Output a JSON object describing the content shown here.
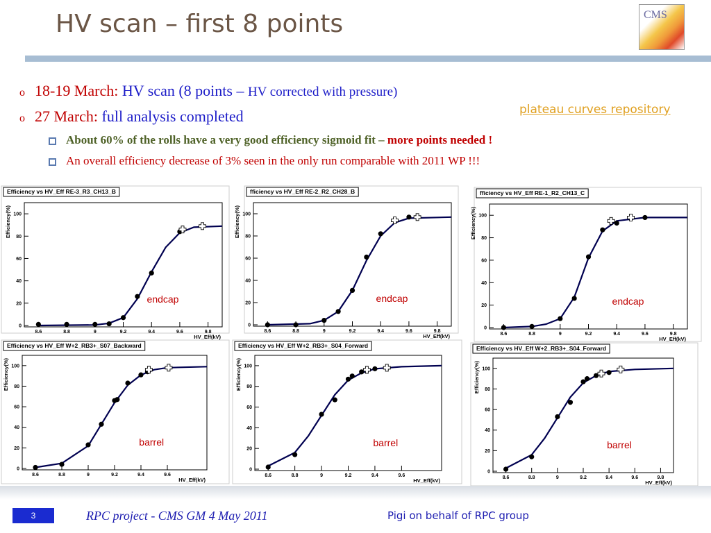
{
  "title": "HV scan – first 8 points",
  "logo": "CMS",
  "link": "plateau curves repository",
  "bullets": [
    {
      "label": "18-19 March:",
      "text": "HV scan (8 points –",
      "note": "HV corrected with pressure)"
    },
    {
      "label": "27 March:",
      "text": "full analysis completed"
    }
  ],
  "subbullets": [
    {
      "text": "About 60% of the rolls have a very good efficiency sigmoid fit –",
      "emphasis": "more points needed !"
    },
    {
      "text": "An overall efficiency decrease of 3% seen in the only run comparable with 2011 WP !!!"
    }
  ],
  "footer": {
    "page": "3",
    "left": "RPC project - CMS GM 4 May 2011",
    "right": "Pigi on behalf of RPC group"
  },
  "chart_data": [
    {
      "type": "scatter",
      "title": "Efficiency vs HV_Eff RE-3_R3_CH13_B",
      "xlabel": "HV_Eff(kV)",
      "ylabel": "Efficiency(%)",
      "annotation": "endcap",
      "xlim": [
        8.5,
        9.9
      ],
      "ylim": [
        0,
        110
      ],
      "xticks": [
        8.6,
        8.8,
        9,
        9.2,
        9.4,
        9.6,
        9.8
      ],
      "yticks": [
        0,
        20,
        40,
        60,
        80,
        100
      ],
      "series": [
        {
          "marker": "circle",
          "color": "#000000",
          "x": [
            8.6,
            8.8,
            9.0,
            9.1,
            9.2,
            9.3,
            9.4,
            9.6
          ],
          "y": [
            1,
            1,
            1,
            1.5,
            7,
            26,
            47,
            84
          ]
        },
        {
          "marker": "cross",
          "color": "#000000",
          "x": [
            9.62,
            9.76
          ],
          "y": [
            86,
            89
          ]
        },
        {
          "marker": "line",
          "color": "#000050",
          "x": [
            8.6,
            9.0,
            9.1,
            9.2,
            9.3,
            9.4,
            9.5,
            9.6,
            9.7,
            9.9
          ],
          "y": [
            0,
            0.5,
            2,
            7,
            24,
            48,
            70,
            83,
            88,
            89
          ]
        }
      ]
    },
    {
      "type": "scatter",
      "title": "fficiency vs HV_Eff RE-2_R2_CH28_B",
      "xlabel": "HV_Eff(kV)",
      "ylabel": "Efficiency(%)",
      "annotation": "endcap",
      "xlim": [
        8.5,
        9.9
      ],
      "ylim": [
        0,
        110
      ],
      "xticks": [
        8.6,
        8.8,
        9,
        9.2,
        9.4,
        9.6,
        9.8
      ],
      "yticks": [
        0,
        20,
        40,
        60,
        80,
        100
      ],
      "series": [
        {
          "marker": "circle",
          "color": "#000000",
          "x": [
            8.6,
            8.8,
            9.0,
            9.1,
            9.2,
            9.3,
            9.4,
            9.6
          ],
          "y": [
            0,
            0,
            4,
            12,
            31,
            61,
            82,
            97
          ]
        },
        {
          "marker": "cross",
          "color": "#000000",
          "x": [
            9.5,
            9.66
          ],
          "y": [
            94,
            97
          ]
        },
        {
          "marker": "line",
          "color": "#000050",
          "x": [
            8.6,
            8.9,
            9.0,
            9.1,
            9.2,
            9.3,
            9.4,
            9.5,
            9.6,
            9.9
          ],
          "y": [
            0,
            1,
            4,
            12,
            31,
            58,
            80,
            92,
            96,
            97
          ]
        }
      ]
    },
    {
      "type": "scatter",
      "title": "fficiency vs HV_Eff RE-1_R2_CH13_C",
      "xlabel": "HV_Eff(kV)",
      "ylabel": "Efficiency(%)",
      "annotation": "endcap",
      "xlim": [
        8.5,
        9.9
      ],
      "ylim": [
        0,
        110
      ],
      "xticks": [
        8.6,
        8.8,
        9,
        9.2,
        9.4,
        9.6,
        9.8
      ],
      "yticks": [
        0,
        20,
        40,
        60,
        80,
        100
      ],
      "series": [
        {
          "marker": "circle",
          "color": "#000000",
          "x": [
            8.6,
            8.8,
            9.0,
            9.1,
            9.2,
            9.3,
            9.4,
            9.6
          ],
          "y": [
            0,
            1,
            8,
            26,
            63,
            87,
            93,
            98
          ]
        },
        {
          "marker": "cross",
          "color": "#000000",
          "x": [
            9.36,
            9.5
          ],
          "y": [
            95,
            98
          ]
        },
        {
          "marker": "line",
          "color": "#000050",
          "x": [
            8.6,
            8.8,
            8.9,
            9.0,
            9.1,
            9.2,
            9.3,
            9.4,
            9.6,
            9.9
          ],
          "y": [
            0,
            1,
            3,
            8,
            27,
            62,
            86,
            95,
            98,
            98
          ]
        }
      ]
    },
    {
      "type": "scatter",
      "title": "Efficiency vs HV_Eff W+2_RB3+_S07_Backward",
      "xlabel": "HV_Eff(kV)",
      "ylabel": "Efficiency(%)",
      "annotation": "barrel",
      "xlim": [
        8.5,
        9.9
      ],
      "ylim": [
        0,
        110
      ],
      "xticks": [
        8.6,
        8.8,
        9,
        9.2,
        9.4,
        9.6
      ],
      "yticks": [
        0,
        20,
        40,
        60,
        80,
        100
      ],
      "series": [
        {
          "marker": "circle",
          "color": "#000000",
          "x": [
            8.6,
            8.8,
            9.0,
            9.1,
            9.2,
            9.22,
            9.3,
            9.4,
            9.45
          ],
          "y": [
            1,
            4,
            23,
            43,
            66,
            67,
            83,
            91,
            94
          ]
        },
        {
          "marker": "cross",
          "color": "#000000",
          "x": [
            9.46,
            9.61
          ],
          "y": [
            96,
            98
          ]
        },
        {
          "marker": "line",
          "color": "#000050",
          "x": [
            8.6,
            8.8,
            9.0,
            9.1,
            9.2,
            9.3,
            9.4,
            9.5,
            9.6,
            9.9
          ],
          "y": [
            1,
            5,
            22,
            43,
            64,
            81,
            91,
            96,
            98,
            99
          ]
        }
      ]
    },
    {
      "type": "scatter",
      "title": "Efficiency vs HV_Eff W+2_RB3+_S04_Forward",
      "xlabel": "HV_Eff(kV)",
      "ylabel": "Efficiency(%)",
      "annotation": "barrel",
      "xlim": [
        8.5,
        9.9
      ],
      "ylim": [
        0,
        110
      ],
      "xticks": [
        8.6,
        8.8,
        9,
        9.2,
        9.4,
        9.6
      ],
      "yticks": [
        0,
        20,
        40,
        60,
        80,
        100
      ],
      "series": [
        {
          "marker": "circle",
          "color": "#000000",
          "x": [
            8.6,
            8.8,
            9.0,
            9.1,
            9.2,
            9.23,
            9.3,
            9.4
          ],
          "y": [
            2,
            14,
            53,
            67,
            87,
            90,
            94,
            97
          ]
        },
        {
          "marker": "cross",
          "color": "#000000",
          "x": [
            9.34,
            9.49
          ],
          "y": [
            96,
            98
          ]
        },
        {
          "marker": "line",
          "color": "#000050",
          "x": [
            8.6,
            8.8,
            8.9,
            9.0,
            9.1,
            9.2,
            9.3,
            9.4,
            9.6,
            9.9
          ],
          "y": [
            3,
            16,
            32,
            52,
            72,
            86,
            93,
            97,
            99,
            100
          ]
        }
      ]
    },
    {
      "type": "scatter",
      "title": "Efficiency vs HV_Eff W+2_RB3+_S04_Forward",
      "xlabel": "HV_Eff(kV)",
      "ylabel": "Efficiency(%)",
      "annotation": "barrel",
      "xlim": [
        8.5,
        9.9
      ],
      "ylim": [
        0,
        110
      ],
      "xticks": [
        8.6,
        8.8,
        9,
        9.2,
        9.4,
        9.6,
        9.8
      ],
      "yticks": [
        0,
        20,
        40,
        60,
        80,
        100
      ],
      "series": [
        {
          "marker": "circle",
          "color": "#000000",
          "x": [
            8.6,
            8.8,
            9.0,
            9.1,
            9.2,
            9.23,
            9.3,
            9.4
          ],
          "y": [
            2,
            14,
            53,
            67,
            87,
            90,
            93,
            96
          ]
        },
        {
          "marker": "cross",
          "color": "#000000",
          "x": [
            9.34,
            9.49
          ],
          "y": [
            95,
            99
          ]
        },
        {
          "marker": "line",
          "color": "#000050",
          "x": [
            8.6,
            8.8,
            8.9,
            9.0,
            9.1,
            9.2,
            9.3,
            9.4,
            9.6,
            9.9
          ],
          "y": [
            3,
            16,
            32,
            52,
            72,
            86,
            93,
            97,
            99,
            100
          ]
        }
      ]
    }
  ]
}
